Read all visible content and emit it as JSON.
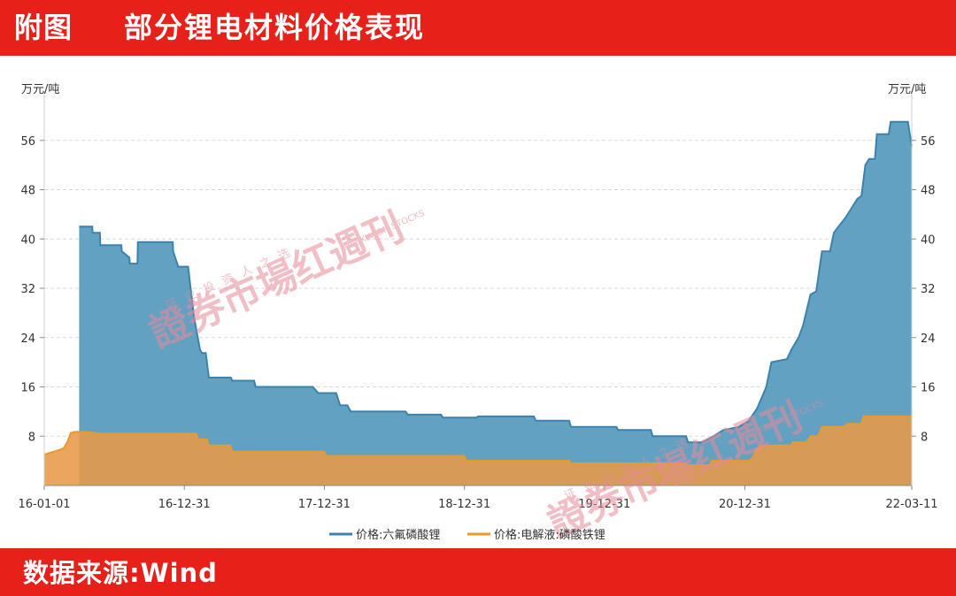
{
  "header": {
    "label": "附图",
    "title": "部分锂电材料价格表现"
  },
  "footer": {
    "source": "数据来源:Wind"
  },
  "watermark": {
    "brand_small": "证 业 投 资 人 之 选",
    "brand_main": "證券市場红週刊",
    "brand_en": "WEEKLY ON STOCKS"
  },
  "colors": {
    "header_bg": "#e8201a",
    "series1": "#3a83ad",
    "series1_fill": "#5b9cc0",
    "series2": "#e89a2a",
    "series2_fill": "#e79a48",
    "grid": "#d9d9d9",
    "watermark": "#e88a98"
  },
  "chart_data": {
    "type": "area",
    "unit_left": "万元/吨",
    "unit_right": "万元/吨",
    "y_ticks": [
      8,
      16,
      24,
      32,
      40,
      48,
      56
    ],
    "ylim": [
      0,
      64
    ],
    "x_ticks": [
      "16-01-01",
      "16-12-31",
      "17-12-31",
      "18-12-31",
      "19-12-31",
      "20-12-31",
      "22-03-11"
    ],
    "xlim": [
      "2016-01-01",
      "2022-03-11"
    ],
    "grid": true,
    "legend_position": "bottom-center",
    "series": [
      {
        "name": "价格:六氟磷酸锂",
        "points": [
          [
            "2016-04-01",
            42
          ],
          [
            "2016-05-05",
            42
          ],
          [
            "2016-05-06",
            41
          ],
          [
            "2016-05-25",
            41
          ],
          [
            "2016-05-26",
            39
          ],
          [
            "2016-07-20",
            39
          ],
          [
            "2016-07-21",
            38
          ],
          [
            "2016-08-10",
            37
          ],
          [
            "2016-08-11",
            36
          ],
          [
            "2016-08-31",
            36
          ],
          [
            "2016-09-01",
            39.5
          ],
          [
            "2016-12-01",
            39.5
          ],
          [
            "2016-12-02",
            38
          ],
          [
            "2016-12-15",
            35.5
          ],
          [
            "2017-01-10",
            35.5
          ],
          [
            "2017-01-25",
            27.5
          ],
          [
            "2017-02-10",
            22
          ],
          [
            "2017-02-15",
            21.5
          ],
          [
            "2017-02-25",
            21.5
          ],
          [
            "2017-03-05",
            17.5
          ],
          [
            "2017-05-01",
            17.5
          ],
          [
            "2017-05-05",
            17
          ],
          [
            "2017-07-01",
            17
          ],
          [
            "2017-07-05",
            16
          ],
          [
            "2017-12-01",
            16
          ],
          [
            "2017-12-15",
            15
          ],
          [
            "2018-01-31",
            15
          ],
          [
            "2018-02-10",
            13
          ],
          [
            "2018-03-01",
            13
          ],
          [
            "2018-03-10",
            12
          ],
          [
            "2018-07-31",
            12
          ],
          [
            "2018-08-05",
            11.5
          ],
          [
            "2018-10-31",
            11.5
          ],
          [
            "2018-11-05",
            11
          ],
          [
            "2019-01-31",
            11
          ],
          [
            "2019-02-05",
            11.2
          ],
          [
            "2019-06-30",
            11.2
          ],
          [
            "2019-07-05",
            10.5
          ],
          [
            "2019-09-30",
            10.5
          ],
          [
            "2019-10-05",
            9.5
          ],
          [
            "2020-01-31",
            9.5
          ],
          [
            "2020-02-05",
            9
          ],
          [
            "2020-04-30",
            9
          ],
          [
            "2020-05-05",
            8
          ],
          [
            "2020-07-31",
            8
          ],
          [
            "2020-08-05",
            7
          ],
          [
            "2020-09-10",
            7
          ],
          [
            "2020-09-20",
            7.3
          ],
          [
            "2020-10-10",
            8
          ],
          [
            "2020-11-05",
            9
          ],
          [
            "2020-12-15",
            9.5
          ],
          [
            "2021-01-10",
            10.5
          ],
          [
            "2021-02-01",
            12.5
          ],
          [
            "2021-02-25",
            16
          ],
          [
            "2021-03-10",
            20
          ],
          [
            "2021-04-20",
            20.5
          ],
          [
            "2021-05-01",
            22
          ],
          [
            "2021-05-20",
            24
          ],
          [
            "2021-06-01",
            26
          ],
          [
            "2021-06-20",
            31
          ],
          [
            "2021-07-05",
            31.5
          ],
          [
            "2021-07-20",
            38
          ],
          [
            "2021-08-10",
            38
          ],
          [
            "2021-08-20",
            41
          ],
          [
            "2021-09-01",
            42
          ],
          [
            "2021-09-20",
            43.5
          ],
          [
            "2021-10-05",
            45
          ],
          [
            "2021-10-20",
            46.5
          ],
          [
            "2021-10-31",
            47
          ],
          [
            "2021-11-10",
            52
          ],
          [
            "2021-11-20",
            53
          ],
          [
            "2021-12-05",
            53
          ],
          [
            "2021-12-10",
            57
          ],
          [
            "2022-01-10",
            57
          ],
          [
            "2022-01-15",
            59
          ],
          [
            "2022-03-01",
            59
          ],
          [
            "2022-03-11",
            55
          ]
        ]
      },
      {
        "name": "价格:电解液:磷酸铁锂",
        "points": [
          [
            "2016-01-01",
            5
          ],
          [
            "2016-01-15",
            5.3
          ],
          [
            "2016-02-01",
            5.6
          ],
          [
            "2016-02-20",
            6
          ],
          [
            "2016-03-01",
            7
          ],
          [
            "2016-03-10",
            8.5
          ],
          [
            "2016-03-20",
            8.7
          ],
          [
            "2016-04-15",
            8.7
          ],
          [
            "2016-05-01",
            8.6
          ],
          [
            "2016-06-01",
            8.4
          ],
          [
            "2017-01-31",
            8.4
          ],
          [
            "2017-02-05",
            7.5
          ],
          [
            "2017-02-28",
            7.5
          ],
          [
            "2017-03-05",
            6.5
          ],
          [
            "2017-04-30",
            6.5
          ],
          [
            "2017-05-05",
            5.5
          ],
          [
            "2017-12-31",
            5.5
          ],
          [
            "2018-01-05",
            4.8
          ],
          [
            "2018-12-31",
            4.8
          ],
          [
            "2019-01-05",
            4
          ],
          [
            "2019-09-30",
            4
          ],
          [
            "2019-10-05",
            3.6
          ],
          [
            "2020-07-31",
            3.6
          ],
          [
            "2020-08-05",
            3.3
          ],
          [
            "2020-09-30",
            3.3
          ],
          [
            "2020-10-05",
            4
          ],
          [
            "2021-01-10",
            4
          ],
          [
            "2021-01-20",
            4.5
          ],
          [
            "2021-02-01",
            6
          ],
          [
            "2021-02-10",
            6.5
          ],
          [
            "2021-04-30",
            6.5
          ],
          [
            "2021-05-05",
            7
          ],
          [
            "2021-06-10",
            7
          ],
          [
            "2021-06-20",
            8
          ],
          [
            "2021-07-10",
            8
          ],
          [
            "2021-07-20",
            9.5
          ],
          [
            "2021-09-15",
            9.5
          ],
          [
            "2021-09-25",
            10
          ],
          [
            "2021-10-31",
            10
          ],
          [
            "2021-11-05",
            11.2
          ],
          [
            "2022-03-11",
            11.2
          ]
        ]
      }
    ]
  }
}
